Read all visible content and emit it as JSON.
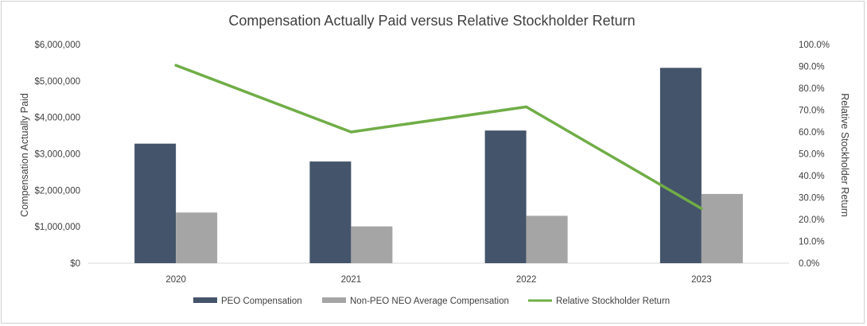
{
  "chart_data": {
    "type": "bar+line",
    "title": "Compensation Actually Paid versus Relative Stockholder Return",
    "categories": [
      "2020",
      "2021",
      "2022",
      "2023"
    ],
    "ylabel_left": "Compensation Actually Paid",
    "ylabel_right": "Relative Stockholder Return",
    "ylim_left": [
      0,
      6000000
    ],
    "ylim_right": [
      0,
      100
    ],
    "left_ticks": [
      "$0",
      "$1,000,000",
      "$2,000,000",
      "$3,000,000",
      "$4,000,000",
      "$5,000,000",
      "$6,000,000"
    ],
    "right_ticks": [
      "0.0%",
      "10.0%",
      "20.0%",
      "30.0%",
      "40.0%",
      "50.0%",
      "60.0%",
      "70.0%",
      "80.0%",
      "90.0%",
      "100.0%"
    ],
    "grid": false,
    "legend_position": "bottom",
    "series": [
      {
        "name": "PEO Compensation",
        "type": "bar",
        "axis": "left",
        "color": "#44546a",
        "values": [
          3280000,
          2790000,
          3640000,
          5360000
        ]
      },
      {
        "name": "Non-PEO NEO Average Compensation",
        "type": "bar",
        "axis": "left",
        "color": "#a5a5a5",
        "values": [
          1390000,
          1010000,
          1300000,
          1900000
        ]
      },
      {
        "name": "Relative Stockholder Return",
        "type": "line",
        "axis": "right",
        "color": "#70ad47",
        "values": [
          90.5,
          60.0,
          71.5,
          25.0
        ]
      }
    ]
  }
}
